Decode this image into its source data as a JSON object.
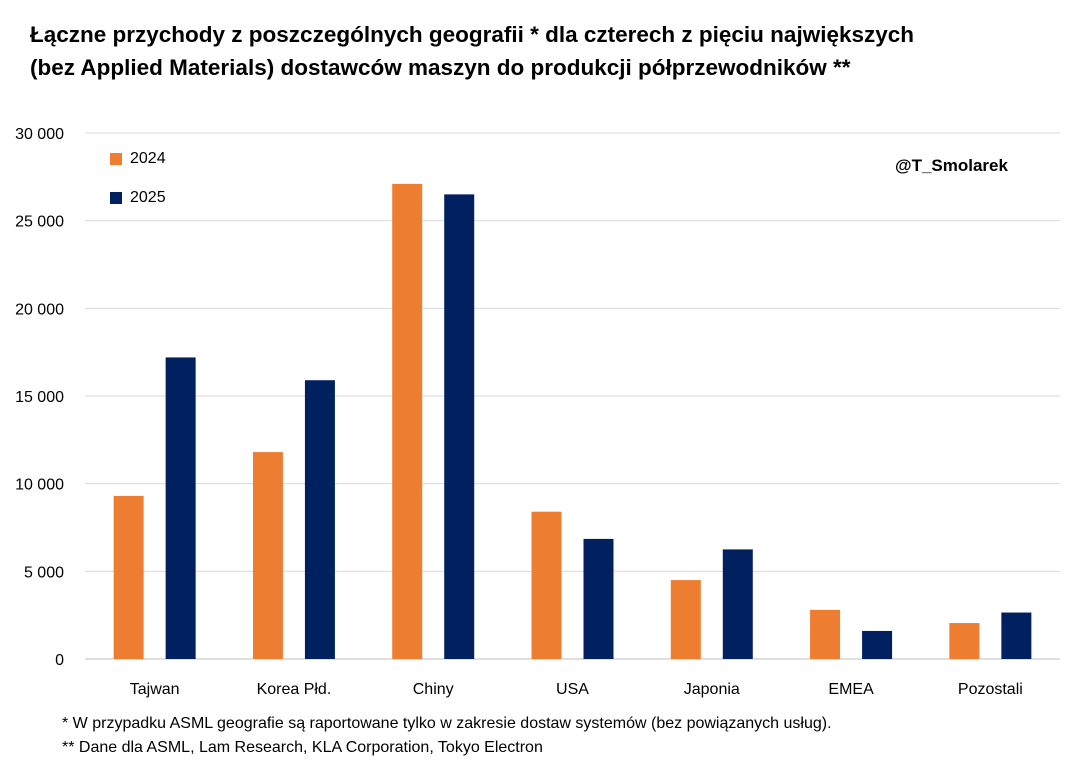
{
  "title_line1": "Łączne przychody z poszczególnych geografii * dla czterech z pięciu największych",
  "title_line2": "(bez Applied Materials) dostawców maszyn do produkcji półprzewodników **",
  "handle": "@T_Smolarek",
  "footnote1": "* W przypadku ASML geografie są raportowane tylko w zakresie dostaw systemów (bez powiązanych usług).",
  "footnote2": "** Dane dla ASML, Lam Research, KLA Corporation, Tokyo Electron",
  "colors": {
    "s2024": "#ED7D31",
    "s2025": "#002060",
    "grid": "#d9d9d9"
  },
  "chart_data": {
    "type": "bar",
    "title": "Łączne przychody z poszczególnych geografii * dla czterech z pięciu największych (bez Applied Materials) dostawców maszyn do produkcji półprzewodników **",
    "xlabel": "",
    "ylabel": "",
    "categories": [
      "Tajwan",
      "Korea Płd.",
      "Chiny",
      "USA",
      "Japonia",
      "EMEA",
      "Pozostali"
    ],
    "series": [
      {
        "name": "2024",
        "values": [
          9300,
          11800,
          27100,
          8400,
          4500,
          2800,
          2050
        ]
      },
      {
        "name": "2025",
        "values": [
          17200,
          15900,
          26500,
          6850,
          6250,
          1600,
          2650
        ]
      }
    ],
    "ylim": [
      0,
      30000
    ],
    "yticks": [
      "0",
      "5 000",
      "10 000",
      "15 000",
      "20 000",
      "25 000",
      "30 000"
    ],
    "grid": true,
    "legend_position": "top-left"
  }
}
